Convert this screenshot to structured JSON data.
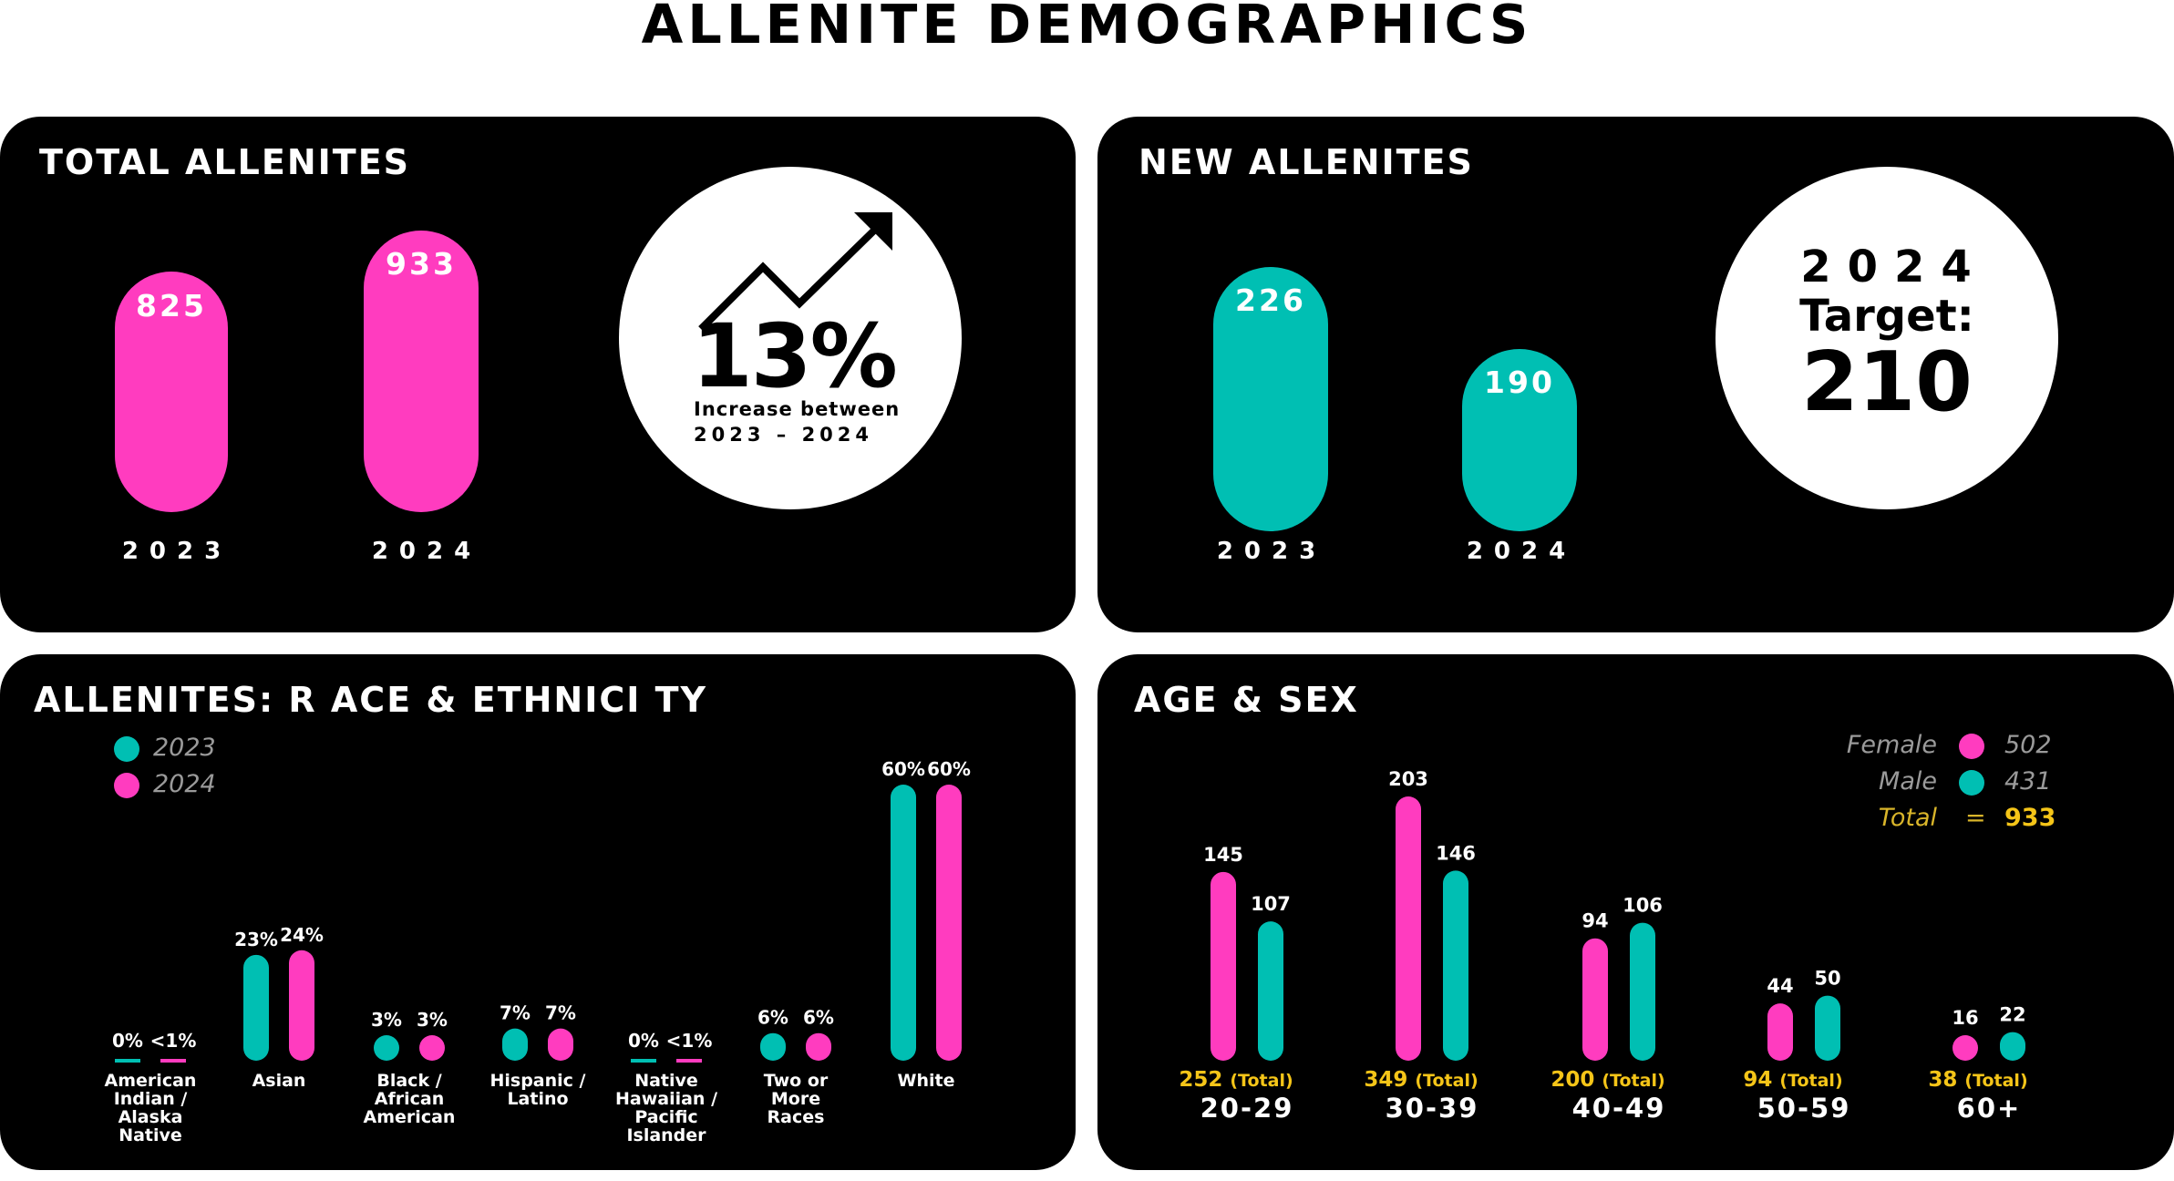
{
  "page_title": "ALLENITE DEMOGRAPHICS",
  "colors": {
    "pink": "#ff3cbf",
    "teal": "#00bfb3",
    "gold": "#f5c518"
  },
  "total": {
    "title": "TOTAL ALLENITES",
    "bars": [
      {
        "year": "2023",
        "value": "825"
      },
      {
        "year": "2024",
        "value": "933"
      }
    ],
    "pct": "13%",
    "pct_sub1": "Increase between",
    "pct_sub2": "2023 – 2024",
    "icon": "trend-up-arrow-icon"
  },
  "new": {
    "title": "NEW ALLENITES",
    "bars": [
      {
        "year": "2023",
        "value": "226"
      },
      {
        "year": "2024",
        "value": "190"
      }
    ],
    "target_year": "2024",
    "target_label": "Target:",
    "target_value": "210"
  },
  "race": {
    "title": "ALLENITES: R ACE & ETHNICI TY",
    "legend": [
      {
        "label": "2023",
        "color": "#00bfb3"
      },
      {
        "label": "2024",
        "color": "#ff3cbf"
      }
    ]
  },
  "age": {
    "title": "AGE & SEX",
    "legend": {
      "female_label": "Female",
      "female_value": "502",
      "male_label": "Male",
      "male_value": "431",
      "total_label": "Total",
      "equals": "=",
      "total_value": "933"
    },
    "total_tag": "(Total)"
  },
  "chart_data": [
    {
      "type": "bar",
      "title": "ALLENITES: R ACE & ETHNICI TY",
      "categories": [
        "American Indian / Alaska Native",
        "Asian",
        "Black / African American",
        "Hispanic / Latino",
        "Native Hawaiian / Pacific Islander",
        "Two or More Races",
        "White"
      ],
      "category_lines": [
        [
          "American",
          "Indian /",
          "Alaska",
          "Native"
        ],
        [
          "Asian"
        ],
        [
          "Black /",
          "African",
          "American"
        ],
        [
          "Hispanic /",
          "Latino"
        ],
        [
          "Native",
          "Hawaiian /",
          "Pacific",
          "Islander"
        ],
        [
          "Two or",
          "More",
          "Races"
        ],
        [
          "White"
        ]
      ],
      "series": [
        {
          "name": "2023",
          "values": [
            0,
            23,
            3,
            7,
            0,
            6,
            60
          ],
          "labels": [
            "0%",
            "23%",
            "3%",
            "7%",
            "0%",
            "6%",
            "60%"
          ]
        },
        {
          "name": "2024",
          "values": [
            0.5,
            24,
            3,
            7,
            0.5,
            6,
            60
          ],
          "labels": [
            "<1%",
            "24%",
            "3%",
            "7%",
            "<1%",
            "6%",
            "60%"
          ]
        }
      ],
      "ylim": [
        0,
        60
      ]
    },
    {
      "type": "bar",
      "title": "AGE & SEX",
      "categories": [
        "20-29",
        "30-39",
        "40-49",
        "50-59",
        "60+"
      ],
      "series": [
        {
          "name": "Female",
          "values": [
            145,
            203,
            94,
            44,
            16
          ]
        },
        {
          "name": "Male",
          "values": [
            107,
            146,
            106,
            50,
            22
          ]
        }
      ],
      "totals": [
        252,
        349,
        200,
        94,
        38
      ],
      "ylim": [
        0,
        203
      ]
    }
  ]
}
